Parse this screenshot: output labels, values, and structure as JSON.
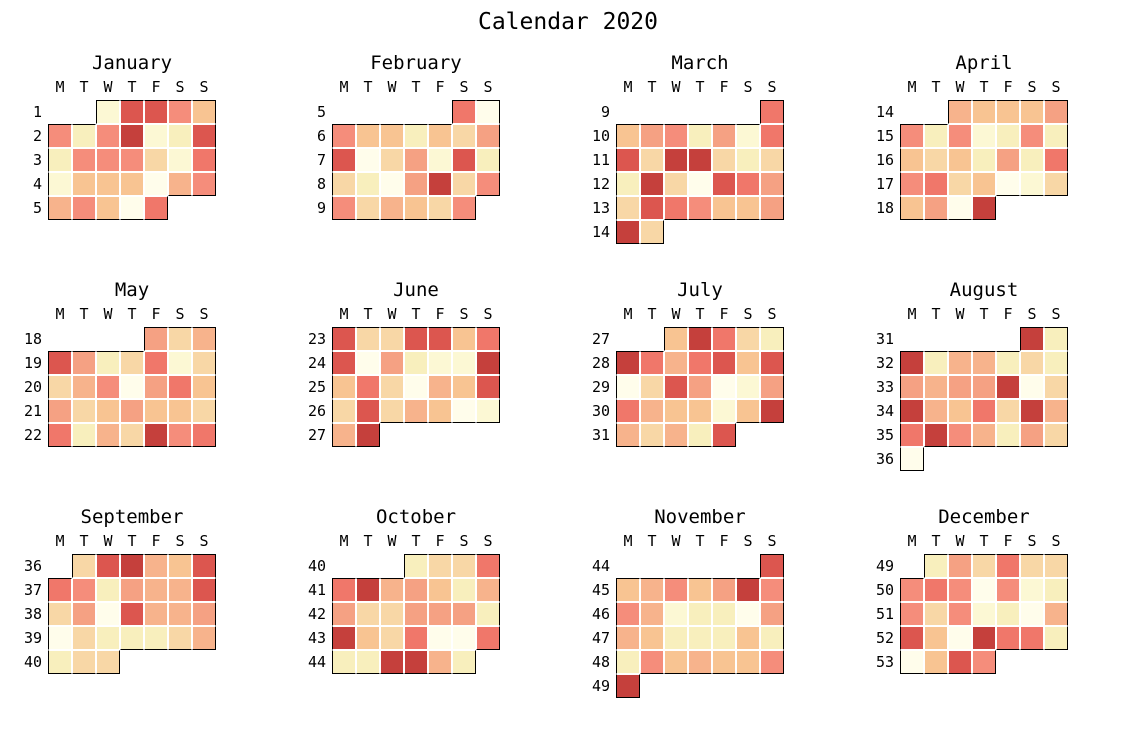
{
  "title": "Calendar 2020",
  "chart_data": {
    "type": "heatmap",
    "subtype": "calendar-heatmap",
    "title": "Calendar 2020",
    "weekday_labels": [
      "M",
      "T",
      "W",
      "T",
      "F",
      "S",
      "S"
    ],
    "legend": "none",
    "palette": {
      "nw": "#fffdeb",
      "cr": "#fcf8d4",
      "py": "#f8efbd",
      "lp": "#f8d7a6",
      "pe": "#f8c492",
      "ps": "#f7b38c",
      "ls": "#f5a183",
      "sa": "#f58d7b",
      "sr": "#f0776a",
      "re": "#dc564f",
      "dr": "#c5403c"
    },
    "months": [
      {
        "name": "January",
        "week_labels": [
          "1",
          "2",
          "3",
          "4",
          "5"
        ],
        "cells": [
          [
            null,
            null,
            "cr",
            "re",
            "re",
            "sa",
            "pe"
          ],
          [
            "sa",
            "py",
            "sa",
            "dr",
            "cr",
            "py",
            "re"
          ],
          [
            "py",
            "sa",
            "sa",
            "sa",
            "lp",
            "cr",
            "sr"
          ],
          [
            "cr",
            "pe",
            "pe",
            "pe",
            "nw",
            "ps",
            "sa"
          ],
          [
            "ps",
            "sa",
            "pe",
            "nw",
            "sr",
            null,
            null
          ]
        ]
      },
      {
        "name": "February",
        "week_labels": [
          "5",
          "6",
          "7",
          "8",
          "9"
        ],
        "cells": [
          [
            null,
            null,
            null,
            null,
            null,
            "sr",
            "nw"
          ],
          [
            "sa",
            "pe",
            "pe",
            "py",
            "pe",
            "lp",
            "ls"
          ],
          [
            "re",
            "nw",
            "lp",
            "ls",
            "cr",
            "re",
            "py"
          ],
          [
            "lp",
            "py",
            "nw",
            "ls",
            "dr",
            "lp",
            "sa"
          ],
          [
            "sa",
            "lp",
            "ps",
            "pe",
            "lp",
            "sa",
            null
          ]
        ]
      },
      {
        "name": "March",
        "week_labels": [
          "9",
          "10",
          "11",
          "12",
          "13",
          "14"
        ],
        "cells": [
          [
            null,
            null,
            null,
            null,
            null,
            null,
            "sr"
          ],
          [
            "pe",
            "ls",
            "sa",
            "py",
            "ls",
            "cr",
            "sr"
          ],
          [
            "re",
            "lp",
            "dr",
            "dr",
            "lp",
            "py",
            "lp"
          ],
          [
            "py",
            "dr",
            "lp",
            "nw",
            "re",
            "sr",
            "ls"
          ],
          [
            "lp",
            "re",
            "sr",
            "sa",
            "pe",
            "pe",
            "ls"
          ],
          [
            "dr",
            "lp",
            null,
            null,
            null,
            null,
            null
          ]
        ]
      },
      {
        "name": "April",
        "week_labels": [
          "14",
          "15",
          "16",
          "17",
          "18"
        ],
        "cells": [
          [
            null,
            null,
            "ps",
            "pe",
            "pe",
            "pe",
            "ls"
          ],
          [
            "sa",
            "py",
            "sa",
            "cr",
            "py",
            "sa",
            "py"
          ],
          [
            "pe",
            "lp",
            "pe",
            "py",
            "ls",
            "py",
            "sr"
          ],
          [
            "sa",
            "sr",
            "lp",
            "pe",
            "nw",
            "cr",
            "lp"
          ],
          [
            "pe",
            "ls",
            "nw",
            "dr",
            null,
            null,
            null
          ]
        ]
      },
      {
        "name": "May",
        "week_labels": [
          "18",
          "19",
          "20",
          "21",
          "22"
        ],
        "cells": [
          [
            null,
            null,
            null,
            null,
            "ls",
            "lp",
            "ps"
          ],
          [
            "re",
            "ls",
            "py",
            "lp",
            "sr",
            "cr",
            "lp"
          ],
          [
            "lp",
            "ps",
            "sa",
            "nw",
            "ls",
            "sr",
            "pe"
          ],
          [
            "ls",
            "lp",
            "pe",
            "ls",
            "pe",
            "pe",
            "lp"
          ],
          [
            "sr",
            "py",
            "ps",
            "lp",
            "dr",
            "sa",
            "sr"
          ]
        ]
      },
      {
        "name": "June",
        "week_labels": [
          "23",
          "24",
          "25",
          "26",
          "27"
        ],
        "cells": [
          [
            "re",
            "lp",
            "lp",
            "re",
            "re",
            "pe",
            "sr"
          ],
          [
            "re",
            "nw",
            "ls",
            "py",
            "cr",
            "cr",
            "dr"
          ],
          [
            "pe",
            "sr",
            "lp",
            "nw",
            "ps",
            "pe",
            "re"
          ],
          [
            "lp",
            "re",
            "lp",
            "ps",
            "pe",
            "nw",
            "cr"
          ],
          [
            "ps",
            "dr",
            null,
            null,
            null,
            null,
            null
          ]
        ]
      },
      {
        "name": "July",
        "week_labels": [
          "27",
          "28",
          "29",
          "30",
          "31"
        ],
        "cells": [
          [
            null,
            null,
            "pe",
            "dr",
            "sr",
            "lp",
            "py"
          ],
          [
            "dr",
            "sr",
            "ps",
            "sr",
            "re",
            "pe",
            "re"
          ],
          [
            "nw",
            "lp",
            "re",
            "ls",
            "nw",
            "cr",
            "ls"
          ],
          [
            "sr",
            "ps",
            "pe",
            "pe",
            "cr",
            "pe",
            "dr"
          ],
          [
            "ps",
            "lp",
            "ps",
            "py",
            "re",
            null,
            null
          ]
        ]
      },
      {
        "name": "August",
        "week_labels": [
          "31",
          "32",
          "33",
          "34",
          "35",
          "36"
        ],
        "cells": [
          [
            null,
            null,
            null,
            null,
            null,
            "dr",
            "py"
          ],
          [
            "dr",
            "py",
            "ps",
            "ps",
            "py",
            "lp",
            "py"
          ],
          [
            "ls",
            "ps",
            "ls",
            "ls",
            "dr",
            "nw",
            "lp"
          ],
          [
            "dr",
            "ps",
            "pe",
            "sr",
            "lp",
            "dr",
            "ps"
          ],
          [
            "sr",
            "dr",
            "sa",
            "ps",
            "py",
            "ls",
            "lp"
          ],
          [
            "nw",
            null,
            null,
            null,
            null,
            null,
            null
          ]
        ]
      },
      {
        "name": "September",
        "week_labels": [
          "36",
          "37",
          "38",
          "39",
          "40"
        ],
        "cells": [
          [
            null,
            "lp",
            "re",
            "dr",
            "ps",
            "pe",
            "re"
          ],
          [
            "sr",
            "sa",
            "py",
            "ls",
            "ps",
            "ps",
            "re"
          ],
          [
            "lp",
            "ls",
            "nw",
            "re",
            "ps",
            "ps",
            "ls"
          ],
          [
            "nw",
            "lp",
            "py",
            "py",
            "py",
            "lp",
            "ps"
          ],
          [
            "py",
            "lp",
            "lp",
            null,
            null,
            null,
            null
          ]
        ]
      },
      {
        "name": "October",
        "week_labels": [
          "40",
          "41",
          "42",
          "43",
          "44"
        ],
        "cells": [
          [
            null,
            null,
            null,
            "py",
            "lp",
            "lp",
            "sr"
          ],
          [
            "sr",
            "dr",
            "ps",
            "ls",
            "pe",
            "py",
            "ps"
          ],
          [
            "ls",
            "lp",
            "lp",
            "ls",
            "ls",
            "ls",
            "py"
          ],
          [
            "dr",
            "pe",
            "lp",
            "sr",
            "nw",
            "nw",
            "sr"
          ],
          [
            "py",
            "py",
            "dr",
            "dr",
            "ps",
            "py",
            null
          ]
        ]
      },
      {
        "name": "November",
        "week_labels": [
          "44",
          "45",
          "46",
          "47",
          "48",
          "49"
        ],
        "cells": [
          [
            null,
            null,
            null,
            null,
            null,
            null,
            "re"
          ],
          [
            "pe",
            "ps",
            "sa",
            "pe",
            "ls",
            "dr",
            "sa"
          ],
          [
            "sa",
            "ps",
            "cr",
            "py",
            "py",
            "nw",
            "ls"
          ],
          [
            "ps",
            "pe",
            "py",
            "py",
            "py",
            "pe",
            "py"
          ],
          [
            "py",
            "sa",
            "pe",
            "ps",
            "pe",
            "pe",
            "sa"
          ],
          [
            "dr",
            null,
            null,
            null,
            null,
            null,
            null
          ]
        ]
      },
      {
        "name": "December",
        "week_labels": [
          "49",
          "50",
          "51",
          "52",
          "53"
        ],
        "cells": [
          [
            null,
            "py",
            "ls",
            "lp",
            "sr",
            "lp",
            "lp"
          ],
          [
            "sa",
            "sr",
            "sa",
            "nw",
            "sa",
            "cr",
            "py"
          ],
          [
            "sa",
            "lp",
            "sa",
            "cr",
            "py",
            "nw",
            "ps"
          ],
          [
            "re",
            "pe",
            "nw",
            "dr",
            "sr",
            "sr",
            "py"
          ],
          [
            "nw",
            "pe",
            "re",
            "sa",
            null,
            null,
            null
          ]
        ]
      }
    ]
  }
}
